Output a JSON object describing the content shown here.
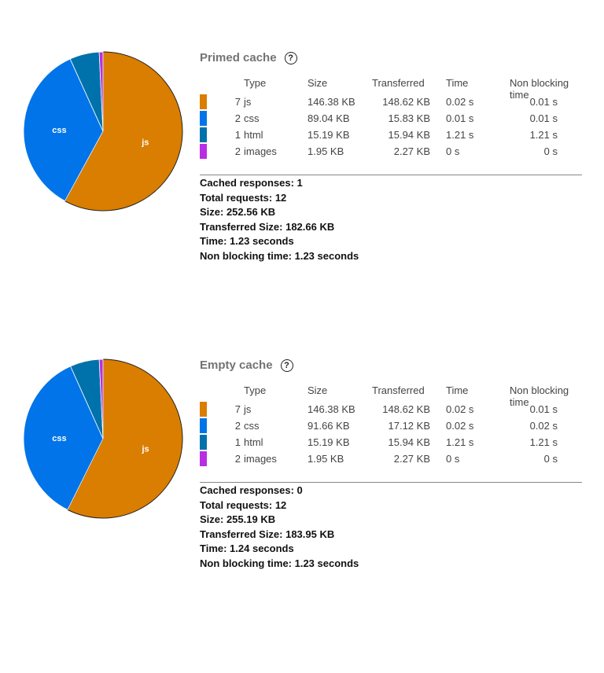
{
  "colors": {
    "js": "#d97e00",
    "css": "#0074e8",
    "html": "#0072ab",
    "images": "#b82ee5"
  },
  "headers": {
    "type": "Type",
    "size": "Size",
    "transferred": "Transferred",
    "time": "Time",
    "non_blocking": "Non blocking time"
  },
  "sections": [
    {
      "title": "Primed cache",
      "help_icon": "?",
      "rows": [
        {
          "count": "7",
          "type": "js",
          "size": "146.38 KB",
          "transferred": "148.62 KB",
          "time": "0.02 s",
          "non_blocking": "0.01 s",
          "size_kb": 146.38
        },
        {
          "count": "2",
          "type": "css",
          "size": "89.04 KB",
          "transferred": "15.83 KB",
          "time": "0.01 s",
          "non_blocking": "0.01 s",
          "size_kb": 89.04
        },
        {
          "count": "1",
          "type": "html",
          "size": "15.19 KB",
          "transferred": "15.94 KB",
          "time": "1.21 s",
          "non_blocking": "1.21 s",
          "size_kb": 15.19
        },
        {
          "count": "2",
          "type": "images",
          "size": "1.95 KB",
          "transferred": "2.27 KB",
          "time": "0 s",
          "non_blocking": "0 s",
          "size_kb": 1.95
        }
      ],
      "summary": [
        "Cached responses: 1",
        "Total requests: 12",
        "Size: 252.56 KB",
        "Transferred Size: 182.66 KB",
        "Time: 1.23 seconds",
        "Non blocking time: 1.23 seconds"
      ]
    },
    {
      "title": "Empty cache",
      "help_icon": "?",
      "rows": [
        {
          "count": "7",
          "type": "js",
          "size": "146.38 KB",
          "transferred": "148.62 KB",
          "time": "0.02 s",
          "non_blocking": "0.01 s",
          "size_kb": 146.38
        },
        {
          "count": "2",
          "type": "css",
          "size": "91.66 KB",
          "transferred": "17.12 KB",
          "time": "0.02 s",
          "non_blocking": "0.02 s",
          "size_kb": 91.66
        },
        {
          "count": "1",
          "type": "html",
          "size": "15.19 KB",
          "transferred": "15.94 KB",
          "time": "1.21 s",
          "non_blocking": "1.21 s",
          "size_kb": 15.19
        },
        {
          "count": "2",
          "type": "images",
          "size": "1.95 KB",
          "transferred": "2.27 KB",
          "time": "0 s",
          "non_blocking": "0 s",
          "size_kb": 1.95
        }
      ],
      "summary": [
        "Cached responses: 0",
        "Total requests: 12",
        "Size: 255.19 KB",
        "Transferred Size: 183.95 KB",
        "Time: 1.24 seconds",
        "Non blocking time: 1.23 seconds"
      ]
    }
  ]
}
